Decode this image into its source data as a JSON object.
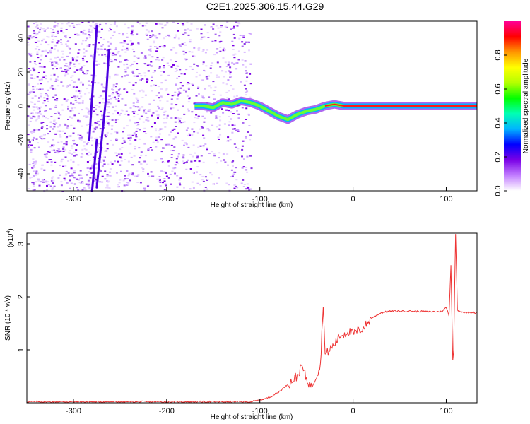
{
  "title": "C2E1.2025.306.15.44.G29",
  "chart_data": [
    {
      "type": "heatmap",
      "xlabel": "Height of straight line (km)",
      "ylabel": "Frequency (Hz)",
      "xlim": [
        -350,
        133
      ],
      "ylim": [
        -50,
        50
      ],
      "xticks": [
        -300,
        -200,
        -100,
        0,
        100
      ],
      "yticks": [
        -40,
        -20,
        0,
        20,
        40
      ],
      "colorbar": {
        "label": "Normalized spectral amplitude",
        "range": [
          0,
          1
        ],
        "ticks": [
          "0.0",
          "0.2",
          "0.4",
          "0.6",
          "0.8"
        ],
        "colors": [
          "#ffffff",
          "#c27dff",
          "#7a00e6",
          "#0000ff",
          "#00b4ff",
          "#00ffb4",
          "#00ff00",
          "#b4ff00",
          "#ffff00",
          "#ff9600",
          "#ff0000",
          "#ff0096"
        ]
      },
      "tone_trace": [
        [
          -170,
          0
        ],
        [
          -160,
          0
        ],
        [
          -150,
          -1
        ],
        [
          -140,
          2
        ],
        [
          -130,
          1
        ],
        [
          -120,
          3
        ],
        [
          -110,
          2
        ],
        [
          -100,
          0
        ],
        [
          -90,
          -3
        ],
        [
          -80,
          -6
        ],
        [
          -70,
          -8
        ],
        [
          -60,
          -5
        ],
        [
          -50,
          -3
        ],
        [
          -40,
          -2
        ],
        [
          -30,
          0
        ],
        [
          -20,
          1
        ],
        [
          -10,
          0
        ],
        [
          0,
          0
        ],
        [
          25,
          0
        ],
        [
          50,
          0
        ],
        [
          75,
          0
        ],
        [
          100,
          0
        ],
        [
          110,
          0
        ],
        [
          133,
          0
        ]
      ],
      "noise_region_x": [
        -350,
        -110
      ],
      "drifting_lines": [
        {
          "x_start": -280,
          "y_start": -50,
          "x_end": -275,
          "y_end": -20
        },
        {
          "x_start": -283,
          "y_start": -20,
          "x_end": -275,
          "y_end": 47
        },
        {
          "x_start": -275,
          "y_start": -48,
          "x_end": -265,
          "y_end": 5
        },
        {
          "x_start": -265,
          "y_start": 5,
          "x_end": -262,
          "y_end": 33
        }
      ]
    },
    {
      "type": "line",
      "xlabel": "Height of straight line (km)",
      "ylabel": "SNR (10 * v/v)",
      "y_scale_label": "(x10",
      "y_scale_exponent": "4",
      "xlim": [
        -350,
        133
      ],
      "ylim": [
        0,
        3.2
      ],
      "xticks": [
        -300,
        -200,
        -100,
        0,
        100
      ],
      "yticks": [
        1,
        2,
        3
      ],
      "line_color": "#ee3333",
      "series": [
        {
          "values": [
            [
              -350,
              0.02
            ],
            [
              -300,
              0.02
            ],
            [
              -250,
              0.02
            ],
            [
              -200,
              0.02
            ],
            [
              -150,
              0.02
            ],
            [
              -110,
              0.02
            ],
            [
              -100,
              0.05
            ],
            [
              -90,
              0.1
            ],
            [
              -80,
              0.2
            ],
            [
              -70,
              0.35
            ],
            [
              -60,
              0.5
            ],
            [
              -55,
              0.7
            ],
            [
              -50,
              0.45
            ],
            [
              -45,
              0.3
            ],
            [
              -40,
              0.5
            ],
            [
              -35,
              0.7
            ],
            [
              -32,
              1.9
            ],
            [
              -30,
              0.9
            ],
            [
              -25,
              1.0
            ],
            [
              -20,
              1.1
            ],
            [
              -15,
              1.25
            ],
            [
              -10,
              1.3
            ],
            [
              -5,
              1.35
            ],
            [
              0,
              1.3
            ],
            [
              5,
              1.35
            ],
            [
              10,
              1.4
            ],
            [
              15,
              1.5
            ],
            [
              20,
              1.6
            ],
            [
              30,
              1.7
            ],
            [
              40,
              1.73
            ],
            [
              60,
              1.73
            ],
            [
              80,
              1.72
            ],
            [
              95,
              1.72
            ],
            [
              100,
              1.8
            ],
            [
              103,
              1.65
            ],
            [
              105,
              2.6
            ],
            [
              107,
              0.8
            ],
            [
              108,
              1.0
            ],
            [
              110,
              3.2
            ],
            [
              112,
              1.75
            ],
            [
              120,
              1.7
            ],
            [
              133,
              1.7
            ]
          ]
        }
      ]
    }
  ]
}
